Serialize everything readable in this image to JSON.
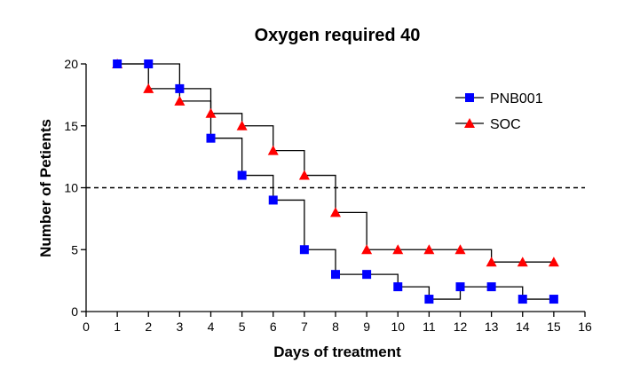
{
  "chart_data": {
    "type": "line",
    "title": "Oxygen required 40",
    "xlabel": "Days of treatment",
    "ylabel": "Number of Petients",
    "xlim": [
      0,
      16
    ],
    "ylim": [
      0,
      20
    ],
    "xticks": [
      0,
      1,
      2,
      3,
      4,
      5,
      6,
      7,
      8,
      9,
      10,
      11,
      12,
      13,
      14,
      15,
      16
    ],
    "yticks": [
      0,
      5,
      10,
      15,
      20
    ],
    "grid": false,
    "step": true,
    "reference_line": {
      "y": 10,
      "style": "dashed"
    },
    "legend_position": "top-right",
    "series": [
      {
        "name": "PNB001",
        "marker": "square",
        "color": "#0000ff",
        "x": [
          1,
          2,
          3,
          4,
          5,
          6,
          7,
          8,
          9,
          10,
          11,
          12,
          13,
          14,
          15
        ],
        "values": [
          20,
          20,
          18,
          14,
          11,
          9,
          5,
          3,
          3,
          2,
          1,
          2,
          2,
          1,
          1
        ]
      },
      {
        "name": "SOC",
        "marker": "triangle",
        "color": "#ff0000",
        "x": [
          1,
          2,
          3,
          4,
          5,
          6,
          7,
          8,
          9,
          10,
          11,
          12,
          13,
          14,
          15
        ],
        "values": [
          20,
          18,
          17,
          16,
          15,
          13,
          11,
          8,
          5,
          5,
          5,
          5,
          4,
          4,
          4
        ]
      }
    ]
  }
}
